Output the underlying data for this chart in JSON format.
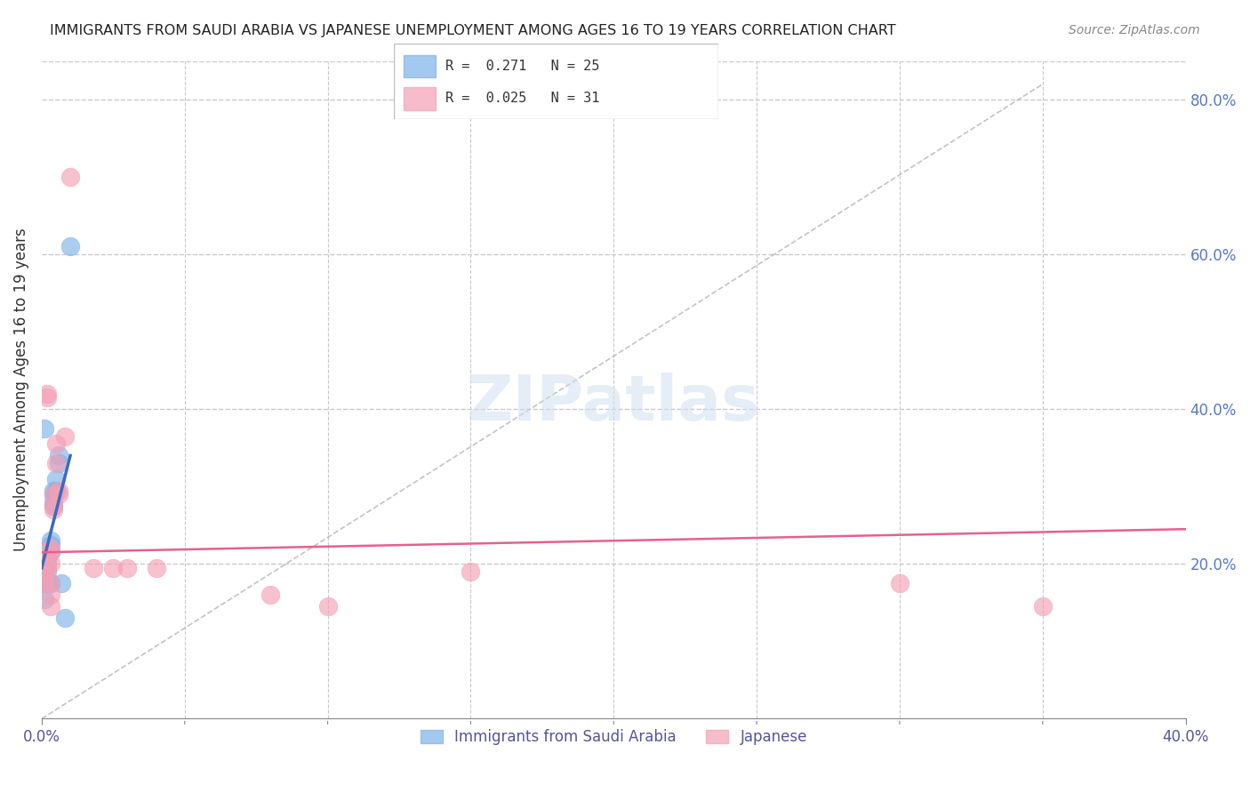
{
  "title": "IMMIGRANTS FROM SAUDI ARABIA VS JAPANESE UNEMPLOYMENT AMONG AGES 16 TO 19 YEARS CORRELATION CHART",
  "source": "Source: ZipAtlas.com",
  "xlabel_bottom": "",
  "ylabel": "Unemployment Among Ages 16 to 19 years",
  "xlim": [
    0.0,
    0.4
  ],
  "ylim": [
    0.0,
    0.85
  ],
  "xticks": [
    0.0,
    0.05,
    0.1,
    0.15,
    0.2,
    0.25,
    0.3,
    0.35,
    0.4
  ],
  "xtick_labels": [
    "0.0%",
    "",
    "",
    "",
    "",
    "",
    "",
    "",
    "40.0%"
  ],
  "ytick_labels_right": [
    "20.0%",
    "40.0%",
    "60.0%",
    "80.0%"
  ],
  "ytick_positions_right": [
    0.2,
    0.4,
    0.6,
    0.8
  ],
  "watermark": "ZIPatlas",
  "legend_r1": "R =  0.271   N = 25",
  "legend_r2": "R =  0.025   N = 31",
  "blue_color": "#7db3e8",
  "pink_color": "#f4a0b5",
  "blue_line_color": "#3a6bbf",
  "pink_line_color": "#e8608a",
  "grid_color": "#c8c8d8",
  "title_color": "#222222",
  "axis_label_color": "#5a5aaa",
  "blue_scatter": [
    [
      0.001,
      0.205
    ],
    [
      0.001,
      0.195
    ],
    [
      0.001,
      0.185
    ],
    [
      0.001,
      0.175
    ],
    [
      0.002,
      0.2
    ],
    [
      0.002,
      0.19
    ],
    [
      0.002,
      0.175
    ],
    [
      0.002,
      0.21
    ],
    [
      0.003,
      0.215
    ],
    [
      0.003,
      0.23
    ],
    [
      0.003,
      0.225
    ],
    [
      0.003,
      0.175
    ],
    [
      0.004,
      0.28
    ],
    [
      0.004,
      0.29
    ],
    [
      0.004,
      0.295
    ],
    [
      0.004,
      0.275
    ],
    [
      0.005,
      0.31
    ],
    [
      0.005,
      0.295
    ],
    [
      0.006,
      0.34
    ],
    [
      0.006,
      0.33
    ],
    [
      0.007,
      0.175
    ],
    [
      0.008,
      0.13
    ],
    [
      0.01,
      0.61
    ],
    [
      0.001,
      0.375
    ],
    [
      0.001,
      0.155
    ]
  ],
  "pink_scatter": [
    [
      0.001,
      0.215
    ],
    [
      0.001,
      0.205
    ],
    [
      0.001,
      0.185
    ],
    [
      0.001,
      0.175
    ],
    [
      0.002,
      0.195
    ],
    [
      0.002,
      0.42
    ],
    [
      0.002,
      0.415
    ],
    [
      0.003,
      0.22
    ],
    [
      0.003,
      0.215
    ],
    [
      0.003,
      0.2
    ],
    [
      0.003,
      0.175
    ],
    [
      0.003,
      0.16
    ],
    [
      0.003,
      0.145
    ],
    [
      0.004,
      0.29
    ],
    [
      0.004,
      0.275
    ],
    [
      0.004,
      0.27
    ],
    [
      0.005,
      0.355
    ],
    [
      0.005,
      0.33
    ],
    [
      0.006,
      0.295
    ],
    [
      0.006,
      0.29
    ],
    [
      0.008,
      0.365
    ],
    [
      0.01,
      0.7
    ],
    [
      0.018,
      0.195
    ],
    [
      0.025,
      0.195
    ],
    [
      0.03,
      0.195
    ],
    [
      0.04,
      0.195
    ],
    [
      0.08,
      0.16
    ],
    [
      0.1,
      0.145
    ],
    [
      0.15,
      0.19
    ],
    [
      0.3,
      0.175
    ],
    [
      0.35,
      0.145
    ]
  ],
  "blue_trendline": [
    [
      0.0,
      0.195
    ],
    [
      0.01,
      0.34
    ]
  ],
  "pink_trendline": [
    [
      0.0,
      0.215
    ],
    [
      0.4,
      0.245
    ]
  ],
  "dashed_line": [
    [
      0.0,
      0.0
    ],
    [
      0.35,
      0.82
    ]
  ]
}
